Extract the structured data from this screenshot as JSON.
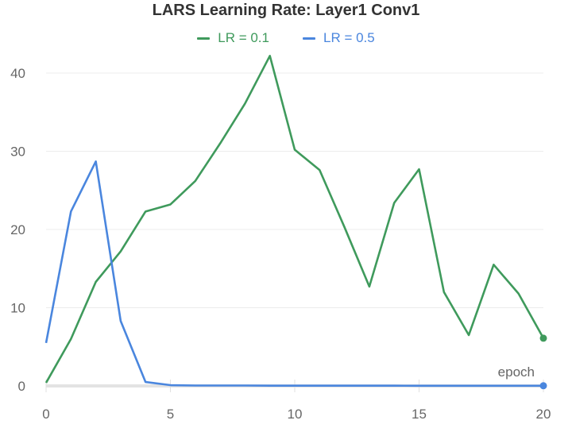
{
  "chart_data": {
    "type": "line",
    "title": "LARS Learning Rate: Layer1 Conv1",
    "xlabel": "epoch",
    "ylabel": "",
    "x": [
      0,
      1,
      2,
      3,
      4,
      5,
      6,
      7,
      8,
      9,
      10,
      11,
      12,
      13,
      14,
      15,
      16,
      17,
      18,
      19,
      20
    ],
    "series": [
      {
        "name": "LR = 0.1",
        "color": "#3f9a5c",
        "values": [
          0.4,
          6.0,
          13.3,
          17.2,
          22.3,
          23.2,
          26.2,
          31.0,
          36.1,
          42.2,
          30.2,
          27.6,
          20.3,
          12.7,
          23.4,
          27.7,
          12.0,
          6.5,
          15.5,
          11.8,
          6.1
        ]
      },
      {
        "name": "LR = 0.5",
        "color": "#4a86de",
        "values": [
          5.5,
          22.3,
          28.7,
          8.3,
          0.5,
          0.1,
          0.05,
          0.05,
          0.05,
          0.03,
          0.03,
          0.03,
          0.03,
          0.03,
          0.03,
          0.02,
          0.02,
          0.02,
          0.02,
          0.02,
          0.02
        ]
      }
    ],
    "x_ticks": [
      0,
      5,
      10,
      15,
      20
    ],
    "y_ticks": [
      0,
      10,
      20,
      30,
      40
    ],
    "xlim": [
      0,
      20
    ],
    "ylim": [
      0,
      44
    ],
    "grid": true,
    "legend_position": "top"
  },
  "header": {
    "title": "LARS Learning Rate: Layer1 Conv1"
  },
  "legend": [
    {
      "label": "LR = 0.1",
      "color": "#3f9a5c"
    },
    {
      "label": "LR = 0.5",
      "color": "#4a86de"
    }
  ],
  "axes": {
    "x_name": "epoch",
    "x_tick_labels": [
      "0",
      "5",
      "10",
      "15",
      "20"
    ],
    "y_tick_labels": [
      "0",
      "10",
      "20",
      "30",
      "40"
    ]
  }
}
